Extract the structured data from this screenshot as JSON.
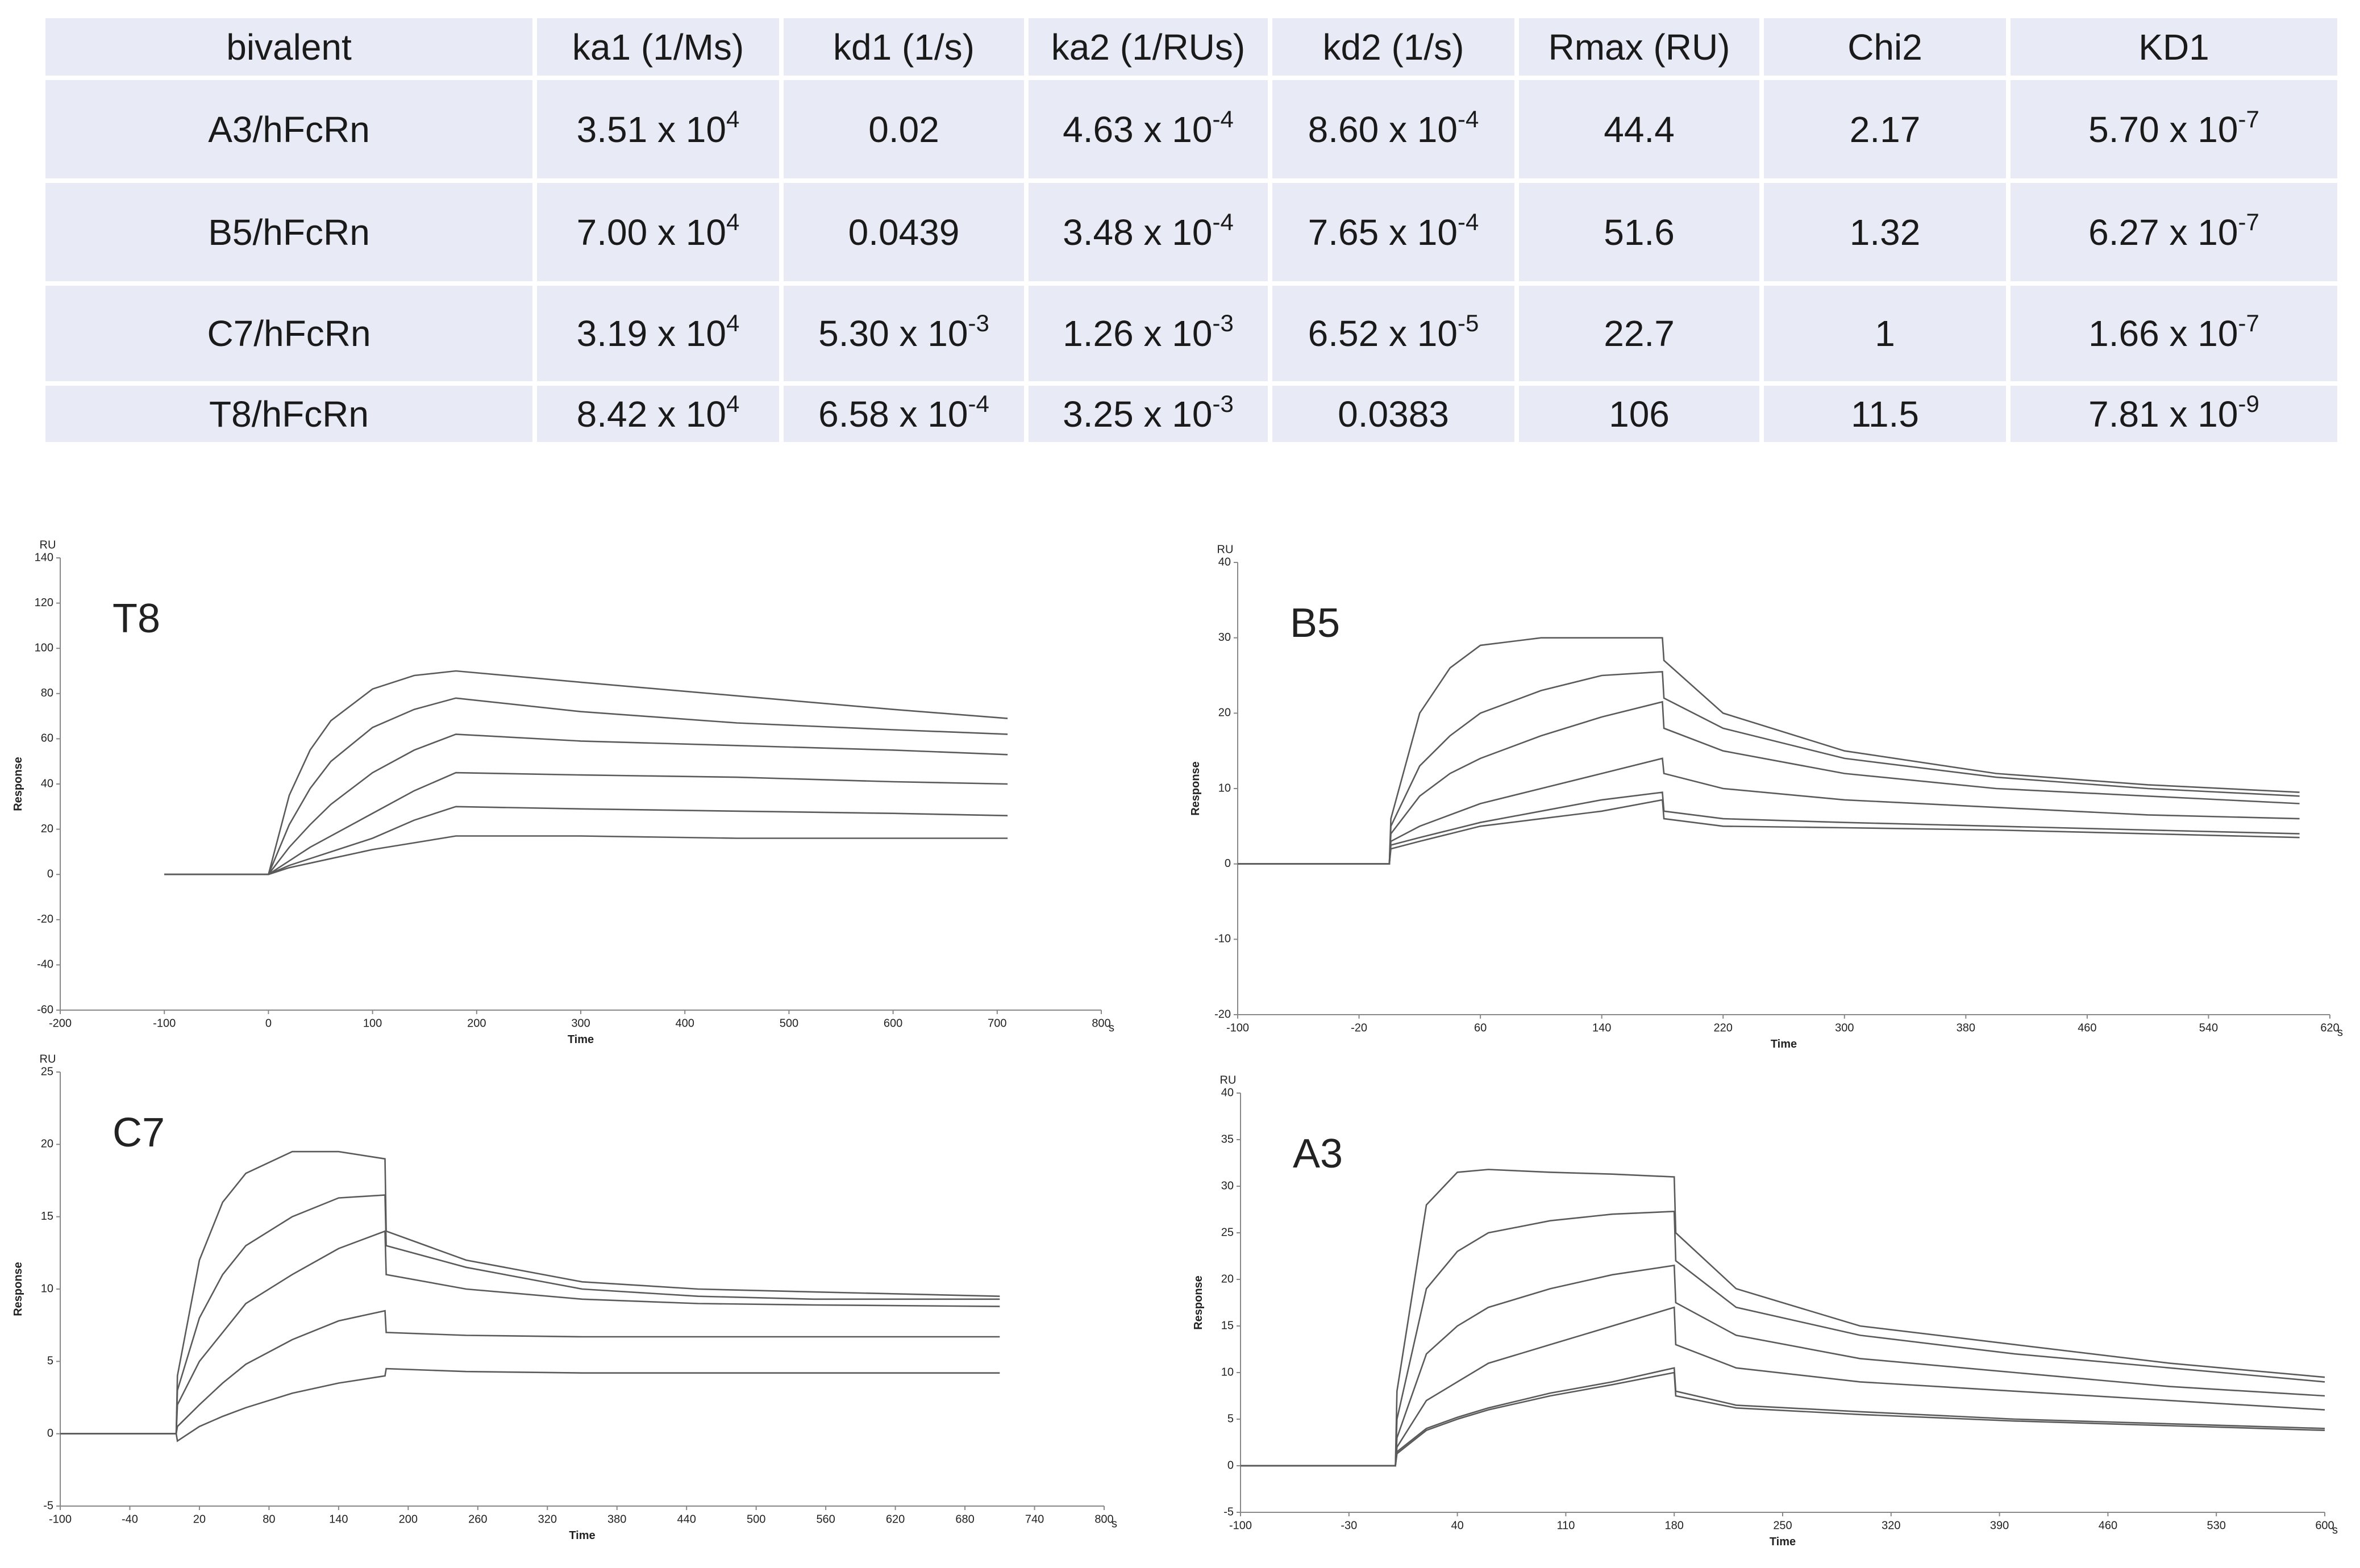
{
  "table": {
    "header": [
      "bivalent",
      "ka1 (1/Ms)",
      "kd1 (1/s)",
      "ka2 (1/RUs)",
      "kd2 (1/s)",
      "Rmax (RU)",
      "Chi2",
      "KD1"
    ],
    "rows": [
      [
        "A3/hFcRn",
        {
          "base": "3.51 x 10",
          "sup": "4"
        },
        "0.02",
        {
          "base": "4.63 x 10",
          "sup": "-4"
        },
        {
          "base": "8.60 x 10",
          "sup": "-4"
        },
        "44.4",
        "2.17",
        {
          "base": "5.70 x 10",
          "sup": "-7"
        }
      ],
      [
        "B5/hFcRn",
        {
          "base": "7.00 x 10",
          "sup": "4"
        },
        "0.0439",
        {
          "base": "3.48 x 10",
          "sup": "-4"
        },
        {
          "base": "7.65 x 10",
          "sup": "-4"
        },
        "51.6",
        "1.32",
        {
          "base": "6.27 x 10",
          "sup": "-7"
        }
      ],
      [
        "C7/hFcRn",
        {
          "base": "3.19 x 10",
          "sup": "4"
        },
        {
          "base": "5.30 x 10",
          "sup": "-3"
        },
        {
          "base": "1.26 x 10",
          "sup": "-3"
        },
        {
          "base": "6.52 x 10",
          "sup": "-5"
        },
        "22.7",
        "1",
        {
          "base": "1.66 x 10",
          "sup": "-7"
        }
      ],
      [
        "T8/hFcRn",
        {
          "base": "8.42 x 10",
          "sup": "4"
        },
        {
          "base": "6.58 x 10",
          "sup": "-4"
        },
        {
          "base": "3.25 x 10",
          "sup": "-3"
        },
        "0.0383",
        "106",
        "11.5",
        {
          "base": "7.81 x 10",
          "sup": "-9"
        }
      ]
    ]
  },
  "chart_data": [
    {
      "type": "line",
      "panel_label": "T8",
      "y_unit": "RU",
      "ylabel": "Response",
      "xlabel": "Time",
      "x_unit": "s",
      "xlim": [
        -200,
        800
      ],
      "xticks": [
        -200,
        -100,
        0,
        100,
        200,
        300,
        400,
        500,
        600,
        700,
        800
      ],
      "ylim": [
        -60,
        140
      ],
      "yticks": [
        -60,
        -40,
        -20,
        0,
        20,
        40,
        60,
        80,
        100,
        120,
        140
      ],
      "x": [
        -100,
        0,
        20,
        40,
        60,
        100,
        140,
        180,
        300,
        450,
        600,
        710
      ],
      "series": [
        {
          "color": "#5a5a5a",
          "values": [
            0,
            0,
            35,
            55,
            68,
            82,
            88,
            90,
            85,
            79,
            73,
            69
          ]
        },
        {
          "color": "#5a5a5a",
          "values": [
            0,
            0,
            22,
            38,
            50,
            65,
            73,
            78,
            72,
            67,
            64,
            62
          ]
        },
        {
          "color": "#5a5a5a",
          "values": [
            0,
            0,
            12,
            22,
            31,
            45,
            55,
            62,
            59,
            57,
            55,
            53
          ]
        },
        {
          "color": "#5a5a5a",
          "values": [
            0,
            0,
            6,
            12,
            17,
            27,
            37,
            45,
            44,
            43,
            41,
            40
          ]
        },
        {
          "color": "#5a5a5a",
          "values": [
            0,
            0,
            4,
            7,
            10,
            16,
            24,
            30,
            29,
            28,
            27,
            26
          ]
        },
        {
          "color": "#5a5a5a",
          "values": [
            0,
            0,
            3,
            5,
            7,
            11,
            14,
            17,
            17,
            16,
            16,
            16
          ]
        }
      ]
    },
    {
      "type": "line",
      "panel_label": "B5",
      "y_unit": "RU",
      "ylabel": "Response",
      "xlabel": "Time",
      "x_unit": "s",
      "xlim": [
        -100,
        620
      ],
      "xticks": [
        -100,
        -20,
        60,
        140,
        220,
        300,
        380,
        460,
        540,
        620
      ],
      "ylim": [
        -20,
        40
      ],
      "yticks": [
        -20,
        -10,
        0,
        10,
        20,
        30,
        40
      ],
      "x": [
        -100,
        0,
        1,
        20,
        40,
        60,
        100,
        140,
        180,
        181,
        220,
        300,
        400,
        500,
        600
      ],
      "series": [
        {
          "color": "#5a5a5a",
          "values": [
            0,
            0,
            6,
            20,
            26,
            29,
            30,
            30,
            30,
            27,
            20,
            15,
            12,
            10.5,
            9.5
          ]
        },
        {
          "color": "#5a5a5a",
          "values": [
            0,
            0,
            5,
            13,
            17,
            20,
            23,
            25,
            25.5,
            22,
            18,
            14,
            11.5,
            10,
            9
          ]
        },
        {
          "color": "#5a5a5a",
          "values": [
            0,
            0,
            4,
            9,
            12,
            14,
            17,
            19.5,
            21.5,
            18,
            15,
            12,
            10,
            9,
            8
          ]
        },
        {
          "color": "#5a5a5a",
          "values": [
            0,
            0,
            3,
            5,
            6.5,
            8,
            10,
            12,
            14,
            12,
            10,
            8.5,
            7.5,
            6.5,
            6
          ]
        },
        {
          "color": "#5a5a5a",
          "values": [
            0,
            0,
            2.5,
            3.5,
            4.5,
            5.5,
            7,
            8.5,
            9.5,
            7,
            6,
            5.5,
            5,
            4.5,
            4
          ]
        },
        {
          "color": "#5a5a5a",
          "values": [
            0,
            0,
            2,
            3,
            4,
            5,
            6,
            7,
            8.5,
            6,
            5,
            4.8,
            4.5,
            4,
            3.5
          ]
        }
      ]
    },
    {
      "type": "line",
      "panel_label": "C7",
      "y_unit": "RU",
      "ylabel": "Response",
      "xlabel": "Time",
      "x_unit": "s",
      "xlim": [
        -100,
        800
      ],
      "xticks": [
        -100,
        -40,
        20,
        80,
        140,
        200,
        260,
        320,
        380,
        440,
        500,
        560,
        620,
        680,
        740,
        800
      ],
      "ylim": [
        -5,
        25
      ],
      "yticks": [
        -5,
        0,
        5,
        10,
        15,
        20,
        25
      ],
      "x": [
        -100,
        0,
        1,
        20,
        40,
        60,
        100,
        140,
        180,
        181,
        250,
        350,
        450,
        550,
        710
      ],
      "series": [
        {
          "color": "#5a5a5a",
          "values": [
            0,
            0,
            4,
            12,
            16,
            18,
            19.5,
            19.5,
            19,
            14,
            12,
            10.5,
            10,
            9.8,
            9.5
          ]
        },
        {
          "color": "#5a5a5a",
          "values": [
            0,
            0,
            3,
            8,
            11,
            13,
            15,
            16.3,
            16.5,
            13,
            11.5,
            10,
            9.5,
            9.3,
            9.3
          ]
        },
        {
          "color": "#5a5a5a",
          "values": [
            0,
            0,
            2,
            5,
            7,
            9,
            11,
            12.8,
            14,
            11,
            10,
            9.3,
            9,
            8.9,
            8.8
          ]
        },
        {
          "color": "#5a5a5a",
          "values": [
            0,
            0,
            0.5,
            2,
            3.5,
            4.8,
            6.5,
            7.8,
            8.5,
            7,
            6.8,
            6.7,
            6.7,
            6.7,
            6.7
          ]
        },
        {
          "color": "#5a5a5a",
          "values": [
            0,
            0,
            -0.5,
            0.5,
            1.2,
            1.8,
            2.8,
            3.5,
            4,
            4.5,
            4.3,
            4.2,
            4.2,
            4.2,
            4.2
          ]
        }
      ]
    },
    {
      "type": "line",
      "panel_label": "A3",
      "y_unit": "RU",
      "ylabel": "Response",
      "xlabel": "Time",
      "x_unit": "s",
      "xlim": [
        -100,
        600
      ],
      "xticks": [
        -100,
        -30,
        40,
        110,
        180,
        250,
        320,
        390,
        460,
        530,
        600
      ],
      "ylim": [
        -5,
        40
      ],
      "yticks": [
        -5,
        0,
        5,
        10,
        15,
        20,
        25,
        30,
        35,
        40
      ],
      "x": [
        -100,
        0,
        1,
        20,
        40,
        60,
        100,
        140,
        180,
        181,
        220,
        300,
        400,
        500,
        600
      ],
      "series": [
        {
          "color": "#5a5a5a",
          "values": [
            0,
            0,
            8,
            28,
            31.5,
            31.8,
            31.5,
            31.3,
            31,
            25,
            19,
            15,
            13,
            11,
            9.5
          ]
        },
        {
          "color": "#5a5a5a",
          "values": [
            0,
            0,
            5,
            19,
            23,
            25,
            26.3,
            27,
            27.3,
            22,
            17,
            14,
            12,
            10.5,
            9
          ]
        },
        {
          "color": "#5a5a5a",
          "values": [
            0,
            0,
            3,
            12,
            15,
            17,
            19,
            20.5,
            21.5,
            17.5,
            14,
            11.5,
            10,
            8.5,
            7.5
          ]
        },
        {
          "color": "#5a5a5a",
          "values": [
            0,
            0,
            2,
            7,
            9,
            11,
            13,
            15,
            17,
            13,
            10.5,
            9,
            8,
            7,
            6
          ]
        },
        {
          "color": "#5a5a5a",
          "values": [
            0,
            0,
            1.5,
            4,
            5.2,
            6.2,
            7.8,
            9,
            10.5,
            8,
            6.5,
            5.8,
            5,
            4.5,
            4
          ]
        },
        {
          "color": "#5a5a5a",
          "values": [
            0,
            0,
            1.3,
            3.8,
            5,
            6,
            7.5,
            8.7,
            10,
            7.5,
            6.2,
            5.5,
            4.8,
            4.3,
            3.8
          ]
        }
      ]
    }
  ]
}
